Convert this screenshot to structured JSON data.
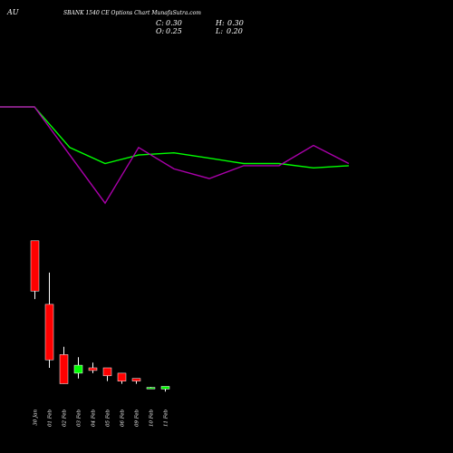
{
  "header": {
    "code": "AU",
    "title": "SBANK 1540 CE Options Chart MunafaSutra.com",
    "ohlc": [
      {
        "label": "C:",
        "value": "0.30"
      },
      {
        "label": "H:",
        "value": "0.30"
      },
      {
        "label": "O:",
        "value": "0.25"
      },
      {
        "label": "L:",
        "value": "0.20"
      }
    ]
  },
  "colors": {
    "background": "#000000",
    "text": "#ffffff",
    "line_green": "#00ff00",
    "line_purple": "#aa00aa",
    "candle_up": "#00ff00",
    "candle_down": "#ff0000",
    "wick": "#ffffff"
  },
  "chart_data": [
    {
      "type": "line",
      "series": [
        {
          "values": [
            1.0,
            1.0,
            0.62,
            0.47,
            0.55,
            0.57,
            0.52,
            0.47,
            0.47,
            0.43,
            0.45
          ]
        },
        {
          "values": [
            1.0,
            1.0,
            0.55,
            0.1,
            0.62,
            0.42,
            0.33,
            0.45,
            0.45,
            0.64,
            0.47
          ]
        }
      ],
      "ylim": [
        0,
        1
      ]
    },
    {
      "type": "candlestick",
      "categories": [
        "30 Jan",
        "01 Feb",
        "02 Feb",
        "03 Feb",
        "04 Feb",
        "05 Feb",
        "06 Feb",
        "09 Feb",
        "10 Feb",
        "11 Feb"
      ],
      "ohlc": [
        {
          "open": 3.05,
          "high": 3.05,
          "low": 1.95,
          "close": 2.1
        },
        {
          "open": 1.85,
          "high": 2.45,
          "low": 0.65,
          "close": 0.8
        },
        {
          "open": 0.9,
          "high": 1.05,
          "low": 0.35,
          "close": 0.35
        },
        {
          "open": 0.55,
          "high": 0.85,
          "low": 0.45,
          "close": 0.7
        },
        {
          "open": 0.65,
          "high": 0.75,
          "low": 0.55,
          "close": 0.6
        },
        {
          "open": 0.65,
          "high": 0.65,
          "low": 0.4,
          "close": 0.5
        },
        {
          "open": 0.55,
          "high": 0.55,
          "low": 0.35,
          "close": 0.4
        },
        {
          "open": 0.45,
          "high": 0.45,
          "low": 0.35,
          "close": 0.4
        },
        {
          "open": 0.28,
          "high": 0.29,
          "low": 0.25,
          "close": 0.28
        },
        {
          "open": 0.25,
          "high": 0.3,
          "low": 0.2,
          "close": 0.3
        }
      ],
      "ylim": [
        0,
        3.15
      ]
    }
  ]
}
